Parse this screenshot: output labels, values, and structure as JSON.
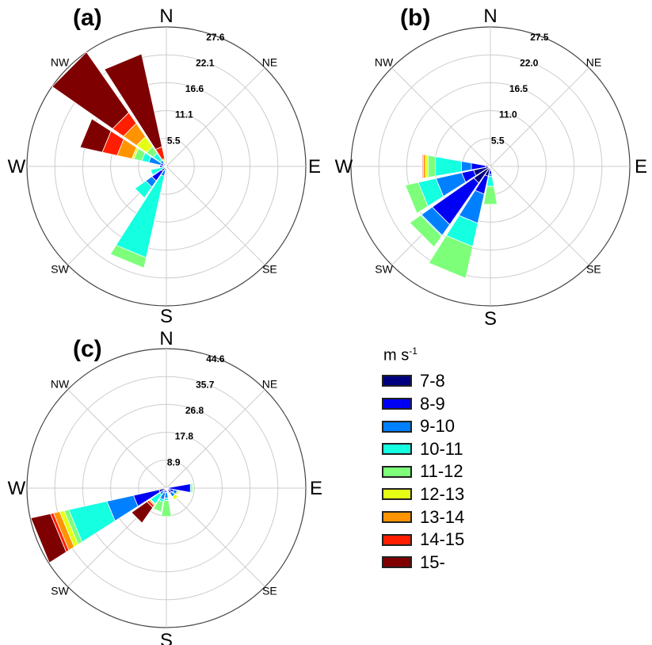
{
  "chart_data": [
    {
      "type": "windrose",
      "panel_label": "(a)",
      "direction_labels": {
        "N": "N",
        "NE": "NE",
        "E": "E",
        "SE": "SE",
        "S": "S",
        "SW": "SW",
        "W": "W",
        "NW": "NW"
      },
      "ring_labels": [
        "5.5",
        "11.1",
        "16.6",
        "22.1",
        "27.6"
      ],
      "rmax": 27.6,
      "directions_deg": [
        0,
        22.5,
        45,
        67.5,
        90,
        112.5,
        135,
        157.5,
        180,
        202.5,
        225,
        247.5,
        270,
        292.5,
        315,
        337.5
      ],
      "bins": [
        "7-8",
        "8-9",
        "9-10",
        "10-11",
        "11-12",
        "12-13",
        "13-14",
        "14-15",
        "15-"
      ],
      "cumulative": {
        "180": [
          0,
          0,
          0.4,
          0,
          0,
          0,
          0,
          0,
          0
        ],
        "202.5": [
          0.3,
          0.8,
          2.0,
          18.5,
          20.6,
          20.6,
          20.6,
          20.6,
          20.6
        ],
        "225": [
          1.2,
          3.5,
          5.0,
          7.6,
          7.6,
          7.6,
          7.6,
          7.6,
          7.6
        ],
        "247.5": [
          0,
          0,
          0,
          3.2,
          3.2,
          3.2,
          3.2,
          3.2,
          3.2
        ],
        "270": [
          0.8,
          1.3,
          1.3,
          1.3,
          1.3,
          1.3,
          1.3,
          1.3,
          1.3
        ],
        "292.5": [
          0.6,
          1.2,
          3.6,
          5.0,
          6.6,
          7.0,
          10.0,
          13.0,
          17.5
        ],
        "315": [
          0.4,
          0.7,
          1.5,
          3.2,
          4.8,
          7.2,
          10.4,
          13.0,
          27.6
        ],
        "337.5": [
          0.2,
          0.4,
          0.6,
          0.8,
          1.0,
          1.3,
          1.6,
          4.0,
          22.8
        ]
      }
    },
    {
      "type": "windrose",
      "panel_label": "(b)",
      "direction_labels": {
        "N": "N",
        "NE": "NE",
        "E": "E",
        "SE": "SE",
        "S": "S",
        "SW": "SW",
        "W": "W",
        "NW": "NW"
      },
      "ring_labels": [
        "5.5",
        "11.0",
        "16.5",
        "22.0",
        "27.5"
      ],
      "rmax": 27.5,
      "directions_deg": [
        0,
        22.5,
        45,
        67.5,
        90,
        112.5,
        135,
        157.5,
        180,
        202.5,
        225,
        247.5,
        270,
        292.5,
        315,
        337.5
      ],
      "bins": [
        "7-8",
        "8-9",
        "9-10",
        "10-11",
        "11-12",
        "12-13",
        "13-14",
        "14-15",
        "15-"
      ],
      "cumulative": {
        "180": [
          0.8,
          1.6,
          2.0,
          4.0,
          7.6,
          7.6,
          7.6,
          7.6,
          7.6
        ],
        "202.5": [
          2.0,
          5.6,
          11.5,
          16.2,
          22.6,
          22.6,
          22.6,
          22.6,
          22.6
        ],
        "225": [
          4.0,
          14.0,
          16.6,
          16.8,
          19.4,
          19.4,
          19.4,
          19.4,
          19.4
        ],
        "247.5": [
          3.4,
          5.8,
          11.0,
          14.6,
          17.2,
          17.2,
          17.2,
          17.2,
          17.2
        ],
        "270": [
          1.0,
          3.8,
          5.8,
          11.0,
          12.5,
          13.0,
          13.4,
          13.6,
          13.6
        ]
      }
    },
    {
      "type": "windrose",
      "panel_label": "(c)",
      "direction_labels": {
        "N": "N",
        "NE": "NE",
        "E": "E",
        "SE": "SE",
        "S": "S",
        "SW": "SW",
        "W": "W",
        "NW": "NW"
      },
      "ring_labels": [
        "8.9",
        "17.8",
        "26.8",
        "35.7",
        "44.6"
      ],
      "rmax": 44.6,
      "directions_deg": [
        0,
        22.5,
        45,
        67.5,
        90,
        112.5,
        135,
        157.5,
        180,
        202.5,
        225,
        247.5,
        270,
        292.5,
        315,
        337.5
      ],
      "bins": [
        "7-8",
        "8-9",
        "9-10",
        "10-11",
        "11-12",
        "12-13",
        "13-14",
        "14-15",
        "15-"
      ],
      "cumulative": {
        "90": [
          0.5,
          7.8,
          7.8,
          8.2,
          8.6,
          8.6,
          8.6,
          8.6,
          8.6
        ],
        "112.5": [
          1.0,
          2.4,
          3.6,
          3.6,
          3.6,
          4.2,
          4.2,
          4.2,
          4.2
        ],
        "135": [
          0.5,
          2.0,
          3.4,
          3.4,
          3.4,
          4.6,
          4.6,
          4.6,
          4.6
        ],
        "180": [
          0.6,
          1.4,
          3.2,
          4.0,
          9.2,
          9.2,
          9.2,
          9.2,
          9.2
        ],
        "202.5": [
          0.6,
          1.6,
          3.8,
          4.6,
          7.8,
          7.8,
          7.8,
          7.8,
          7.8
        ],
        "225": [
          0.4,
          1.2,
          2.6,
          6.2,
          6.2,
          6.4,
          6.8,
          7.6,
          13.6
        ],
        "247.5": [
          2.4,
          10.8,
          19.5,
          32.0,
          33.5,
          35.0,
          37.0,
          38.0,
          44.4
        ]
      }
    }
  ],
  "legend": {
    "title_base": "m s",
    "title_sup": "-1",
    "items": [
      {
        "label": "7-8",
        "color": "#00007f"
      },
      {
        "label": "8-9",
        "color": "#0000f5"
      },
      {
        "label": "9-10",
        "color": "#0080ff"
      },
      {
        "label": "10-11",
        "color": "#15ffe1"
      },
      {
        "label": "11-12",
        "color": "#7dff7a"
      },
      {
        "label": "12-13",
        "color": "#e4ff13"
      },
      {
        "label": "13-14",
        "color": "#ff9400"
      },
      {
        "label": "14-15",
        "color": "#ff1e00"
      },
      {
        "label": "15-",
        "color": "#7f0000"
      }
    ]
  }
}
